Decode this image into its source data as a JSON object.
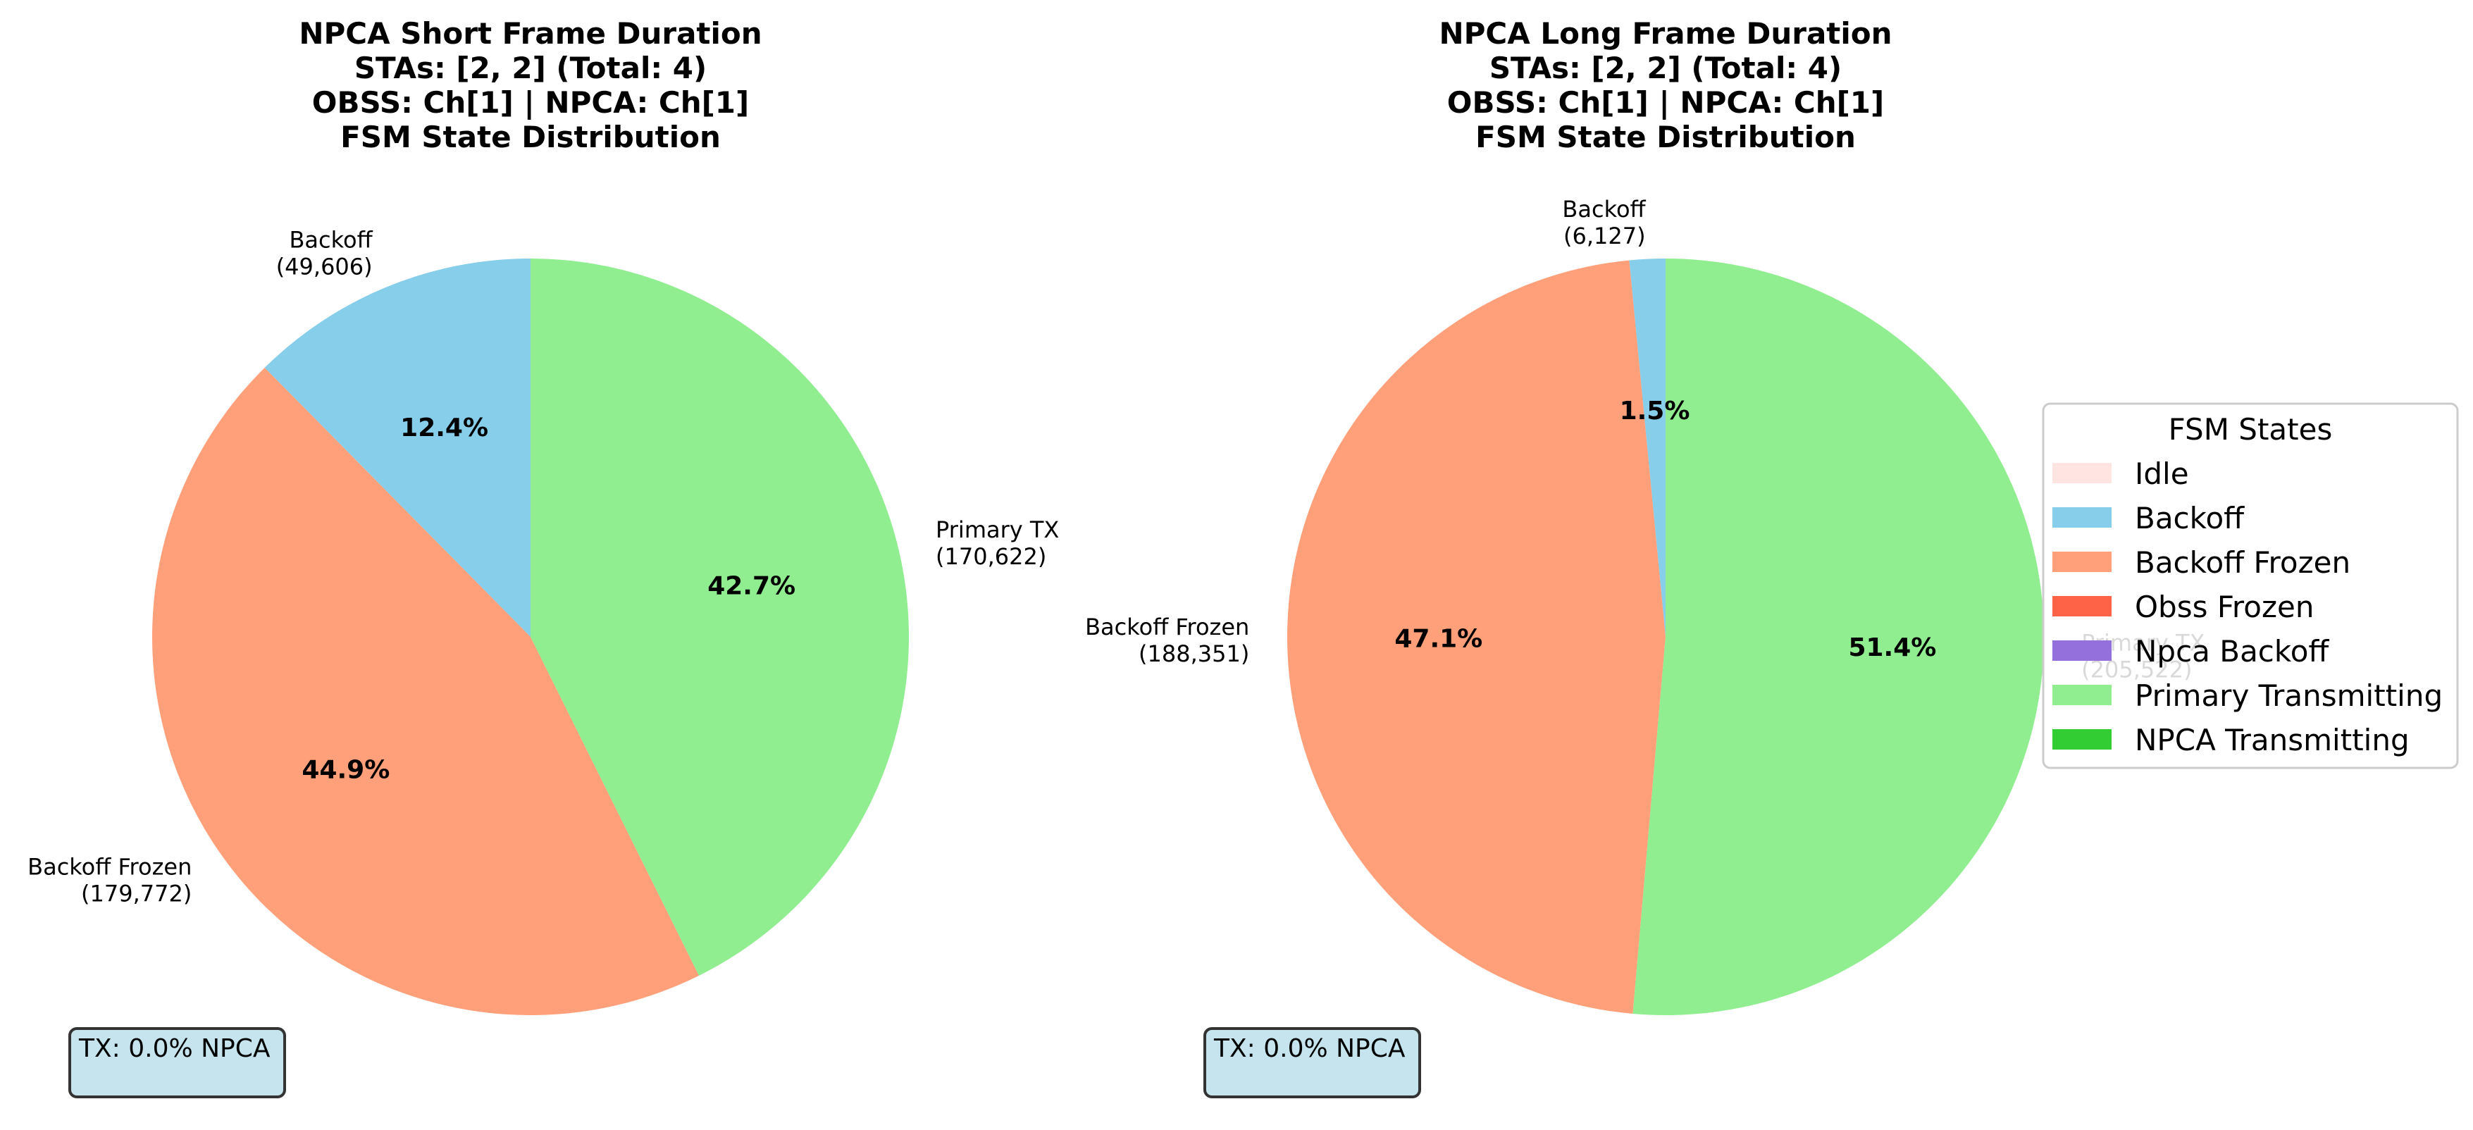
{
  "legend": {
    "title": "FSM States",
    "items": [
      {
        "label": "Idle",
        "color": "#FFE4E1"
      },
      {
        "label": "Backoff",
        "color": "#87CEEB"
      },
      {
        "label": "Backoff Frozen",
        "color": "#FFA07A"
      },
      {
        "label": "Obss Frozen",
        "color": "#FF6347"
      },
      {
        "label": "Npca Backoff",
        "color": "#9370DB"
      },
      {
        "label": "Primary Transmitting",
        "color": "#90EE90"
      },
      {
        "label": "NPCA Transmitting",
        "color": "#32CD32"
      }
    ]
  },
  "chart_data": [
    {
      "type": "pie",
      "title": [
        "NPCA Short Frame Duration",
        "STAs: [2, 2] (Total: 4)",
        "OBSS: Ch[1] | NPCA: Ch[1]",
        "FSM State Distribution"
      ],
      "start_angle_deg": 90,
      "direction": "counterclockwise",
      "slices": [
        {
          "name": "Backoff",
          "count": "(49,606)",
          "value": 49606,
          "pct": "12.4%",
          "color": "#87CEEB"
        },
        {
          "name": "Backoff Frozen",
          "count": "(179,772)",
          "value": 179772,
          "pct": "44.9%",
          "color": "#FFA07A"
        },
        {
          "name": "Primary TX",
          "count": "(170,622)",
          "value": 170622,
          "pct": "42.7%",
          "color": "#90EE90"
        }
      ],
      "note": "TX: 0.0% NPCA"
    },
    {
      "type": "pie",
      "title": [
        "NPCA Long Frame Duration",
        "STAs: [2, 2] (Total: 4)",
        "OBSS: Ch[1] | NPCA: Ch[1]",
        "FSM State Distribution"
      ],
      "start_angle_deg": 90,
      "direction": "counterclockwise",
      "slices": [
        {
          "name": "Backoff",
          "count": "(6,127)",
          "value": 6127,
          "pct": "1.5%",
          "color": "#87CEEB"
        },
        {
          "name": "Backoff Frozen",
          "count": "(188,351)",
          "value": 188351,
          "pct": "47.1%",
          "color": "#FFA07A"
        },
        {
          "name": "Primary TX",
          "count": "(205,522)",
          "value": 205522,
          "pct": "51.4%",
          "color": "#90EE90"
        }
      ],
      "note": "TX: 0.0% NPCA"
    }
  ]
}
